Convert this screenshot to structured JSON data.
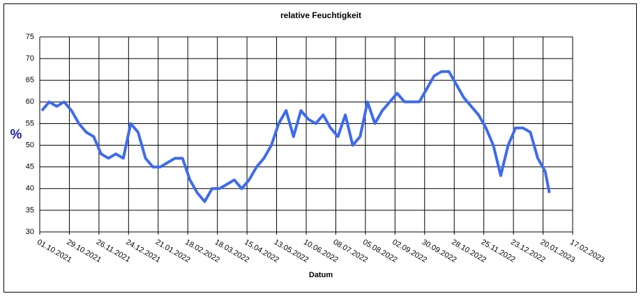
{
  "chart_data": {
    "type": "line",
    "title": "relative Feuchtigkeit",
    "xlabel": "Datum",
    "ylabel": "%",
    "x": [
      "2021-10-03",
      "2021-10-10",
      "2021-10-17",
      "2021-10-24",
      "2021-10-31",
      "2021-11-07",
      "2021-11-14",
      "2021-11-21",
      "2021-11-28",
      "2021-12-05",
      "2021-12-12",
      "2021-12-19",
      "2021-12-26",
      "2022-01-02",
      "2022-01-09",
      "2022-01-16",
      "2022-01-23",
      "2022-01-30",
      "2022-02-06",
      "2022-02-13",
      "2022-02-20",
      "2022-02-27",
      "2022-03-06",
      "2022-03-13",
      "2022-03-20",
      "2022-03-27",
      "2022-04-03",
      "2022-04-10",
      "2022-04-17",
      "2022-04-24",
      "2022-05-01",
      "2022-05-08",
      "2022-05-15",
      "2022-05-22",
      "2022-05-29",
      "2022-06-05",
      "2022-06-12",
      "2022-06-19",
      "2022-06-26",
      "2022-07-03",
      "2022-07-10",
      "2022-07-17",
      "2022-07-24",
      "2022-07-31",
      "2022-08-07",
      "2022-08-14",
      "2022-08-21",
      "2022-08-28",
      "2022-09-04",
      "2022-09-11",
      "2022-09-18",
      "2022-09-25",
      "2022-10-02",
      "2022-10-09",
      "2022-10-16",
      "2022-10-23",
      "2022-10-30",
      "2022-11-06",
      "2022-11-13",
      "2022-11-20",
      "2022-11-27",
      "2022-12-04",
      "2022-12-11",
      "2022-12-18",
      "2022-12-25",
      "2023-01-01",
      "2023-01-08",
      "2023-01-15",
      "2023-01-22",
      "2023-01-26"
    ],
    "series": [
      {
        "name": "relative Feuchtigkeit",
        "color": "#3d6bef",
        "values": [
          58,
          60,
          59,
          60,
          58,
          55,
          53,
          52,
          48,
          47,
          48,
          47,
          55,
          53,
          47,
          45,
          45,
          46,
          47,
          47,
          42,
          39,
          37,
          40,
          40,
          41,
          42,
          40,
          42,
          45,
          47,
          50,
          55,
          58,
          52,
          58,
          56,
          55,
          57,
          54,
          52,
          57,
          50,
          52,
          60,
          55,
          58,
          60,
          62,
          60,
          60,
          60,
          63,
          66,
          67,
          67,
          64,
          61,
          59,
          57,
          54,
          50,
          43,
          50,
          54,
          54,
          53,
          47,
          44,
          39
        ]
      }
    ],
    "xlim": [
      "2021-10-01",
      "2023-02-17"
    ],
    "xticks": [
      {
        "value": "2021-10-01",
        "label": "01.10.2021"
      },
      {
        "value": "2021-10-29",
        "label": "29.10.2021"
      },
      {
        "value": "2021-11-26",
        "label": "26.11.2021"
      },
      {
        "value": "2021-12-24",
        "label": "24.12.2021"
      },
      {
        "value": "2022-01-21",
        "label": "21.01.2022"
      },
      {
        "value": "2022-02-18",
        "label": "18.02.2022"
      },
      {
        "value": "2022-03-18",
        "label": "18.03.2022"
      },
      {
        "value": "2022-04-15",
        "label": "15.04.2022"
      },
      {
        "value": "2022-05-13",
        "label": "13.05.2022"
      },
      {
        "value": "2022-06-10",
        "label": "10.06.2022"
      },
      {
        "value": "2022-07-08",
        "label": "08.07.2022"
      },
      {
        "value": "2022-08-05",
        "label": "05.08.2022"
      },
      {
        "value": "2022-09-02",
        "label": "02.09.2022"
      },
      {
        "value": "2022-09-30",
        "label": "30.09.2022"
      },
      {
        "value": "2022-10-28",
        "label": "28.10.2022"
      },
      {
        "value": "2022-11-25",
        "label": "25.11.2022"
      },
      {
        "value": "2022-12-23",
        "label": "23.12.2022"
      },
      {
        "value": "2023-01-20",
        "label": "20.01.2023"
      },
      {
        "value": "2023-02-17",
        "label": "17.02.2023"
      }
    ],
    "ylim": [
      30,
      75
    ],
    "yticks": [
      30,
      35,
      40,
      45,
      50,
      55,
      60,
      65,
      70,
      75
    ],
    "grid": true
  }
}
